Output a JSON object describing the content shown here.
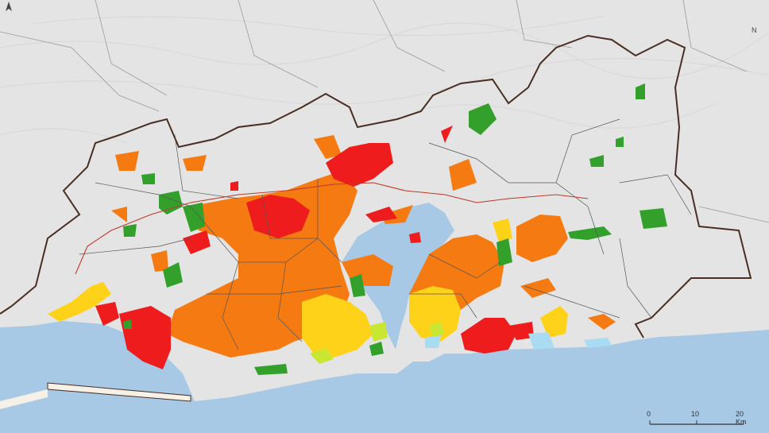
{
  "map": {
    "north_label": "N",
    "scale_labels": [
      "0",
      "10",
      "20 Km"
    ],
    "colors": {
      "sea": "#a7c9e6",
      "land": "#e4e4e4",
      "relief": "#d2d2d2",
      "boundary": "#4a2e24",
      "district_lines": "#555555",
      "road": "#c0392b",
      "class_red": "#ee1c1c",
      "class_orange": "#f57a12",
      "class_gold": "#ffd21a",
      "class_yellow_green": "#c8e632",
      "class_green": "#33a02c",
      "class_light_blue": "#a9dcf2"
    }
  }
}
